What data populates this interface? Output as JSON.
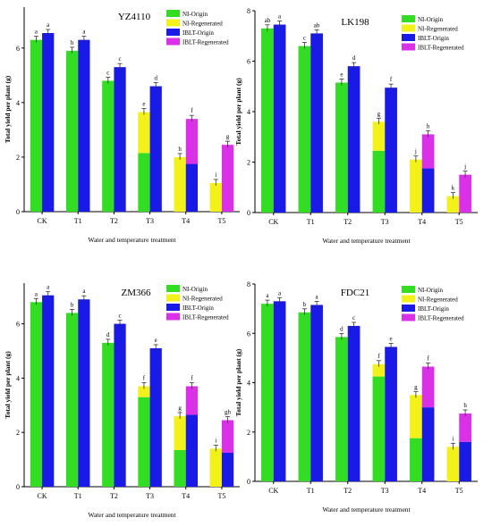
{
  "colors": {
    "nl_origin": "#33dd22",
    "nl_regenerated": "#f2f21a",
    "iblt_origin": "#1a1ae6",
    "iblt_regenerated": "#d930e8",
    "axis": "#000000",
    "error_bar": "#333333"
  },
  "chart_data": [
    {
      "type": "bar",
      "title": "YZ4110",
      "xlabel": "Water and temperature treatment",
      "ylabel": "Total yield per plant (g)",
      "ylim": [
        0,
        7.5
      ],
      "yticks": [
        "0",
        "2",
        "4",
        "6"
      ],
      "categories": [
        "CK",
        "T1",
        "T2",
        "T3",
        "T4",
        "T5"
      ],
      "legend_position": "top-right",
      "series": [
        {
          "name": "NI-Origin",
          "color_key": "nl_origin",
          "values": [
            6.3,
            5.9,
            4.8,
            2.15,
            0,
            0
          ]
        },
        {
          "name": "NI-Regenerated",
          "color_key": "nl_regenerated",
          "values": [
            0,
            0,
            0,
            1.5,
            2.0,
            1.05
          ]
        },
        {
          "name": "IBLT-Origin",
          "color_key": "iblt_origin",
          "values": [
            6.55,
            6.3,
            5.3,
            4.6,
            1.75,
            0
          ]
        },
        {
          "name": "IBLT-Regenerated",
          "color_key": "iblt_regenerated",
          "values": [
            0,
            0,
            0,
            0,
            1.65,
            2.45
          ]
        }
      ],
      "bar_labels": [
        [
          "a",
          "b",
          "c",
          "e",
          "h",
          "i"
        ],
        [
          "a",
          "a",
          "c",
          "d",
          "f",
          "g"
        ]
      ]
    },
    {
      "type": "bar",
      "title": "LK198",
      "xlabel": "Water and temperature treatment",
      "ylabel": "Total yield per plant (g)",
      "ylim": [
        0,
        8
      ],
      "yticks": [
        "0",
        "2",
        "4",
        "6",
        "8"
      ],
      "categories": [
        "CK",
        "T1",
        "T2",
        "T3",
        "T4",
        "T5"
      ],
      "legend_position": "top-right",
      "series": [
        {
          "name": "NI-Origin",
          "color_key": "nl_origin",
          "values": [
            7.3,
            6.6,
            5.15,
            2.45,
            0,
            0
          ]
        },
        {
          "name": "NI-Regenerated",
          "color_key": "nl_regenerated",
          "values": [
            0,
            0,
            0,
            1.15,
            2.1,
            0.65
          ]
        },
        {
          "name": "IBLT-Origin",
          "color_key": "iblt_origin",
          "values": [
            7.45,
            7.1,
            5.8,
            4.95,
            1.75,
            0
          ]
        },
        {
          "name": "IBLT-Regenerated",
          "color_key": "iblt_regenerated",
          "values": [
            0,
            0,
            0,
            0,
            1.35,
            1.5
          ]
        }
      ],
      "bar_labels": [
        [
          "ab",
          "c",
          "e",
          "g",
          "j",
          "k"
        ],
        [
          "a",
          "ab",
          "d",
          "f",
          "h",
          "j"
        ]
      ]
    },
    {
      "type": "bar",
      "title": "ZM366",
      "xlabel": "Water and temperature treatment",
      "ylabel": "Total yield per plant (g)",
      "ylim": [
        0,
        7.5
      ],
      "yticks": [
        "0",
        "2",
        "4",
        "6"
      ],
      "categories": [
        "CK",
        "T1",
        "T2",
        "T3",
        "T4",
        "T5"
      ],
      "legend_position": "top-right",
      "series": [
        {
          "name": "NI-Origin",
          "color_key": "nl_origin",
          "values": [
            6.8,
            6.4,
            5.3,
            3.3,
            1.35,
            0
          ]
        },
        {
          "name": "NI-Regenerated",
          "color_key": "nl_regenerated",
          "values": [
            0,
            0,
            0,
            0.4,
            1.25,
            1.4
          ]
        },
        {
          "name": "IBLT-Origin",
          "color_key": "iblt_origin",
          "values": [
            7.05,
            6.9,
            6.0,
            5.1,
            2.65,
            1.25
          ]
        },
        {
          "name": "IBLT-Regenerated",
          "color_key": "iblt_regenerated",
          "values": [
            0,
            0,
            0,
            0,
            1.05,
            1.2
          ]
        }
      ],
      "bar_labels": [
        [
          "a",
          "b",
          "d",
          "f",
          "g",
          "i"
        ],
        [
          "a",
          "a",
          "c",
          "e",
          "f",
          "gh"
        ]
      ]
    },
    {
      "type": "bar",
      "title": "FDC21",
      "xlabel": "Water and temperature treatment",
      "ylabel": "Total yield per plant (g)",
      "ylim": [
        0,
        8
      ],
      "yticks": [
        "0",
        "2",
        "4",
        "6",
        "8"
      ],
      "categories": [
        "CK",
        "T1",
        "T2",
        "T3",
        "T4",
        "T5"
      ],
      "legend_position": "top-right",
      "series": [
        {
          "name": "NI-Origin",
          "color_key": "nl_origin",
          "values": [
            7.2,
            6.85,
            5.85,
            4.25,
            1.75,
            0
          ]
        },
        {
          "name": "NI-Regenerated",
          "color_key": "nl_regenerated",
          "values": [
            0,
            0,
            0,
            0.5,
            1.75,
            1.4
          ]
        },
        {
          "name": "IBLT-Origin",
          "color_key": "iblt_origin",
          "values": [
            7.3,
            7.15,
            6.3,
            5.45,
            3.0,
            1.6
          ]
        },
        {
          "name": "IBLT-Regenerated",
          "color_key": "iblt_regenerated",
          "values": [
            0,
            0,
            0,
            0,
            1.65,
            1.15
          ]
        }
      ],
      "bar_labels": [
        [
          "a",
          "b",
          "d",
          "f",
          "g",
          "i"
        ],
        [
          "a",
          "a",
          "c",
          "e",
          "f",
          "h"
        ]
      ]
    }
  ]
}
